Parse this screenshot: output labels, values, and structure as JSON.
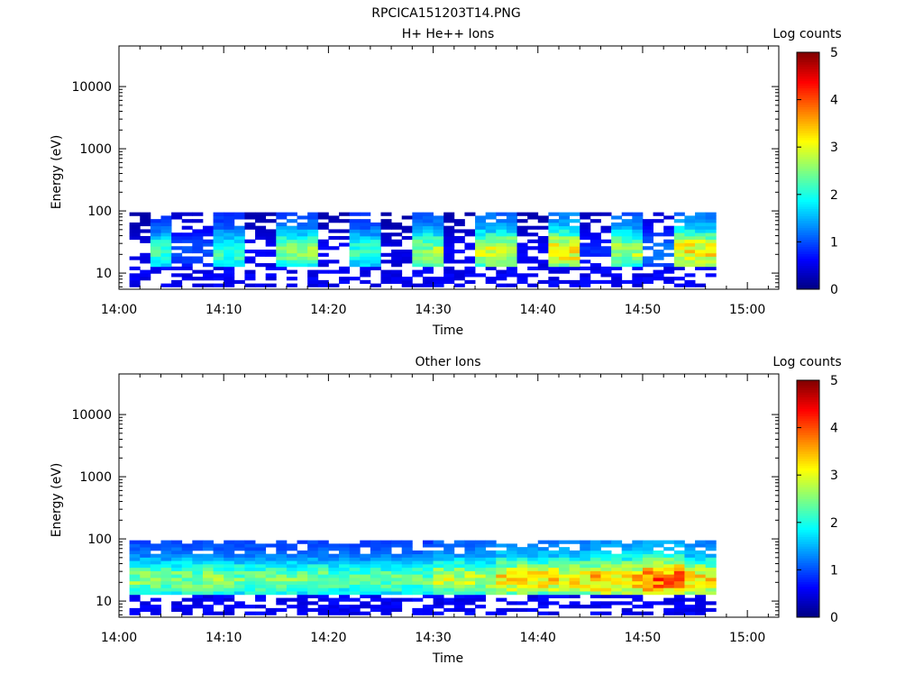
{
  "figure": {
    "title": "RPCICA151203T14.PNG"
  },
  "chart_data": [
    {
      "type": "heatmap",
      "title": "H+ He++ Ions",
      "xlabel": "Time",
      "ylabel": "Energy (eV)",
      "x_ticks": [
        "14:00",
        "14:10",
        "14:20",
        "14:30",
        "14:40",
        "14:50",
        "15:00"
      ],
      "xlim": [
        "14:00",
        "15:03"
      ],
      "y_scale": "log",
      "ylim": [
        5.5,
        45000
      ],
      "y_ticks": [
        "10",
        "100",
        "1000",
        "10000"
      ],
      "data_time_range": [
        "14:01",
        "14:57"
      ],
      "data_energy_range": [
        6,
        95
      ],
      "colorbar": {
        "label": "Log counts",
        "range": [
          0,
          5
        ],
        "ticks": [
          "0",
          "1",
          "2",
          "3",
          "4",
          "5"
        ],
        "colormap": "jet"
      },
      "intensity_profile": [
        {
          "start": "14:01",
          "end": "14:03",
          "peak_log_counts": 0.5
        },
        {
          "start": "14:03",
          "end": "14:05",
          "peak_log_counts": 2.2
        },
        {
          "start": "14:05",
          "end": "14:09",
          "peak_log_counts": 1.0
        },
        {
          "start": "14:09",
          "end": "14:12",
          "peak_log_counts": 2.2
        },
        {
          "start": "14:12",
          "end": "14:15",
          "peak_log_counts": 0.6
        },
        {
          "start": "14:15",
          "end": "14:19",
          "peak_log_counts": 2.6
        },
        {
          "start": "14:19",
          "end": "14:22",
          "peak_log_counts": 0.6
        },
        {
          "start": "14:22",
          "end": "14:25",
          "peak_log_counts": 2.2
        },
        {
          "start": "14:25",
          "end": "14:28",
          "peak_log_counts": 0.5
        },
        {
          "start": "14:28",
          "end": "14:31",
          "peak_log_counts": 2.7
        },
        {
          "start": "14:31",
          "end": "14:34",
          "peak_log_counts": 0.6
        },
        {
          "start": "14:34",
          "end": "14:38",
          "peak_log_counts": 3.0
        },
        {
          "start": "14:38",
          "end": "14:41",
          "peak_log_counts": 0.6
        },
        {
          "start": "14:41",
          "end": "14:44",
          "peak_log_counts": 3.3
        },
        {
          "start": "14:44",
          "end": "14:47",
          "peak_log_counts": 0.8
        },
        {
          "start": "14:47",
          "end": "14:50",
          "peak_log_counts": 2.8
        },
        {
          "start": "14:50",
          "end": "14:53",
          "peak_log_counts": 1.2
        },
        {
          "start": "14:53",
          "end": "14:57",
          "peak_log_counts": 3.3
        }
      ]
    },
    {
      "type": "heatmap",
      "title": "Other Ions",
      "xlabel": "Time",
      "ylabel": "Energy (eV)",
      "x_ticks": [
        "14:00",
        "14:10",
        "14:20",
        "14:30",
        "14:40",
        "14:50",
        "15:00"
      ],
      "xlim": [
        "14:00",
        "15:03"
      ],
      "y_scale": "log",
      "ylim": [
        5.5,
        45000
      ],
      "y_ticks": [
        "10",
        "100",
        "1000",
        "10000"
      ],
      "data_time_range": [
        "14:01",
        "14:57"
      ],
      "data_energy_range": [
        6,
        95
      ],
      "colorbar": {
        "label": "Log counts",
        "range": [
          0,
          5
        ],
        "ticks": [
          "0",
          "1",
          "2",
          "3",
          "4",
          "5"
        ],
        "colormap": "jet"
      },
      "intensity_profile": [
        {
          "start": "14:01",
          "end": "14:10",
          "peak_log_counts": 2.6
        },
        {
          "start": "14:10",
          "end": "14:20",
          "peak_log_counts": 2.5
        },
        {
          "start": "14:20",
          "end": "14:30",
          "peak_log_counts": 2.4
        },
        {
          "start": "14:30",
          "end": "14:36",
          "peak_log_counts": 2.9
        },
        {
          "start": "14:36",
          "end": "14:45",
          "peak_log_counts": 3.3
        },
        {
          "start": "14:45",
          "end": "14:50",
          "peak_log_counts": 3.5
        },
        {
          "start": "14:50",
          "end": "14:54",
          "peak_log_counts": 4.0
        },
        {
          "start": "14:54",
          "end": "14:57",
          "peak_log_counts": 3.3
        }
      ]
    }
  ]
}
